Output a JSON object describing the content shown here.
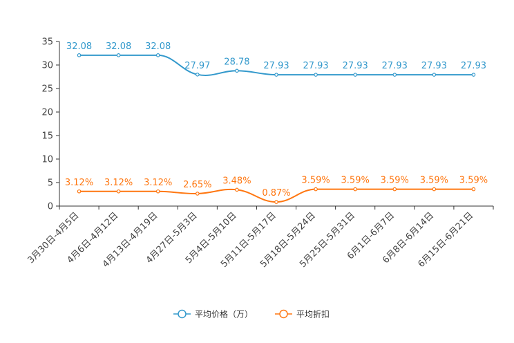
{
  "chart_data": {
    "type": "line",
    "title": "",
    "xlabel": "",
    "ylabel": "",
    "ylim": [
      0,
      35
    ],
    "yticks": [
      0,
      5,
      10,
      15,
      20,
      25,
      30,
      35
    ],
    "grid": false,
    "legend_position": "bottom",
    "categories": [
      "3月30日-4月5日",
      "4月6日-4月12日",
      "4月13日-4月19日",
      "4月27日-5月3日",
      "5月4日-5月10日",
      "5月11日-5月17日",
      "5月18日-5月24日",
      "5月25日-5月31日",
      "6月1日-6月7日",
      "6月8日-6月14日",
      "6月15日-6月21日"
    ],
    "series": [
      {
        "name": "平均价格（万）",
        "color": "#3399cc",
        "values": [
          32.08,
          32.08,
          32.08,
          27.97,
          28.78,
          27.93,
          27.93,
          27.93,
          27.93,
          27.93,
          27.93
        ],
        "labels": [
          "32.08",
          "32.08",
          "32.08",
          "27.97",
          "28.78",
          "27.93",
          "27.93",
          "27.93",
          "27.93",
          "27.93",
          "27.93"
        ]
      },
      {
        "name": "平均折扣",
        "color": "#ff7711",
        "values": [
          3.12,
          3.12,
          3.12,
          2.65,
          3.48,
          0.87,
          3.59,
          3.59,
          3.59,
          3.59,
          3.59
        ],
        "labels": [
          "3.12%",
          "3.12%",
          "3.12%",
          "2.65%",
          "3.48%",
          "0.87%",
          "3.59%",
          "3.59%",
          "3.59%",
          "3.59%",
          "3.59%"
        ]
      }
    ]
  }
}
